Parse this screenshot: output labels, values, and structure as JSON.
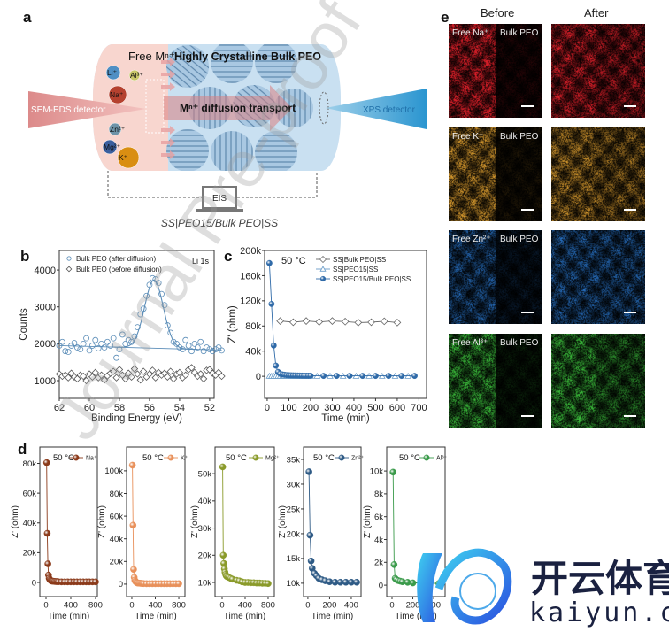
{
  "panel_labels": {
    "a": "a",
    "b": "b",
    "c": "c",
    "d": "d",
    "e": "e"
  },
  "diagram": {
    "free_ions_title": "Free Mⁿ⁺",
    "crystalline_title": "Highly Crystalline Bulk PEO",
    "transport_label": "Mⁿ⁺ diffusion transport",
    "sem_detector": "SEM-EDS detector",
    "xps_detector": "XPS detector",
    "eis_label": "EIS",
    "cell_caption": "SS|PEO15/Bulk PEO|SS",
    "ions": [
      {
        "label": "Li⁺",
        "color": "#4f8fc4"
      },
      {
        "label": "Al³⁺",
        "color": "#c9c76a"
      },
      {
        "label": "Na⁺",
        "color": "#b5412f"
      },
      {
        "label": "Zn²⁺",
        "color": "#6d93a8"
      },
      {
        "label": "Mg²⁺",
        "color": "#3a5f9e"
      },
      {
        "label": "K⁺",
        "color": "#d98e12"
      }
    ]
  },
  "eds_maps": {
    "column_headers": [
      "Before",
      "After"
    ],
    "rows": [
      {
        "free_label": "Free Na⁺",
        "bulk_label": "Bulk PEO",
        "color": "#e0202a",
        "before": [
          0.85,
          0.12
        ],
        "after": [
          0.75,
          0.6
        ]
      },
      {
        "free_label": "Free K⁺",
        "bulk_label": "Bulk PEO",
        "color": "#e0a030",
        "before": [
          0.75,
          0.1
        ],
        "after": [
          0.7,
          0.55
        ]
      },
      {
        "free_label": "Free Zn²⁺",
        "bulk_label": "Bulk PEO",
        "color": "#2a78d0",
        "before": [
          0.6,
          0.15
        ],
        "after": [
          0.65,
          0.6
        ]
      },
      {
        "free_label": "Free Al³⁺",
        "bulk_label": "Bulk PEO",
        "color": "#3cc03c",
        "before": [
          0.75,
          0.12
        ],
        "after": [
          0.75,
          0.5
        ]
      }
    ]
  },
  "watermarks": {
    "journal": "Journal Pre-proof",
    "brand_cn": "开云体育",
    "brand_url": "kaiyun.com"
  },
  "chart_data": [
    {
      "id": "b",
      "type": "scatter",
      "xlabel": "Binding Energy (eV)",
      "ylabel": "Counts",
      "xlim": [
        62,
        51.7
      ],
      "ylim": [
        520,
        4530
      ],
      "xticks": {
        "values": [
          62,
          60,
          58,
          56,
          54,
          52
        ],
        "labels": [
          "62",
          "60",
          "58",
          "56",
          "54",
          "52"
        ]
      },
      "yticks": {
        "values": [
          1000,
          2000,
          3000,
          4000
        ],
        "labels": [
          "1000",
          "2000",
          "3000",
          "4000"
        ]
      },
      "annotation": "Li 1s",
      "legend_position": "top-left",
      "series": [
        {
          "name": "Bulk PEO (after diffusion)",
          "marker": "circle-open",
          "color": "#5b8db8",
          "x": [
            62.0,
            61.8,
            61.6,
            61.4,
            61.2,
            61.0,
            60.8,
            60.6,
            60.4,
            60.2,
            60.0,
            59.8,
            59.6,
            59.4,
            59.2,
            59.0,
            58.8,
            58.6,
            58.4,
            58.2,
            58.0,
            57.8,
            57.6,
            57.4,
            57.2,
            57.0,
            56.8,
            56.6,
            56.4,
            56.2,
            56.0,
            55.8,
            55.6,
            55.4,
            55.2,
            55.0,
            54.8,
            54.6,
            54.4,
            54.2,
            54.0,
            53.8,
            53.6,
            53.4,
            53.2,
            53.0,
            52.8,
            52.6,
            52.4,
            52.2,
            52.0,
            51.8,
            51.6,
            51.4,
            51.2
          ],
          "y": [
            1950,
            2050,
            1800,
            1780,
            1950,
            2020,
            1900,
            1850,
            2000,
            2150,
            1820,
            1950,
            2100,
            1880,
            2000,
            1900,
            2050,
            1950,
            2150,
            1620,
            1850,
            2250,
            2000,
            2100,
            2050,
            2200,
            2450,
            2800,
            2950,
            3300,
            3600,
            3780,
            3750,
            3650,
            3350,
            3050,
            2500,
            2300,
            2050,
            2000,
            1900,
            1850,
            2100,
            1950,
            1800,
            2000,
            1900,
            2050,
            1800,
            1900,
            1850,
            1800,
            1850,
            1900,
            1820
          ]
        },
        {
          "name": "Bulk PEO (before diffusion)",
          "marker": "diamond-open",
          "color": "#555555",
          "x": [
            62.0,
            61.8,
            61.6,
            61.4,
            61.2,
            61.0,
            60.8,
            60.6,
            60.4,
            60.2,
            60.0,
            59.8,
            59.6,
            59.4,
            59.2,
            59.0,
            58.8,
            58.6,
            58.4,
            58.2,
            58.0,
            57.8,
            57.6,
            57.4,
            57.2,
            57.0,
            56.8,
            56.6,
            56.4,
            56.2,
            56.0,
            55.8,
            55.6,
            55.4,
            55.2,
            55.0,
            54.8,
            54.6,
            54.4,
            54.2,
            54.0,
            53.8,
            53.6,
            53.4,
            53.2,
            53.0,
            52.8,
            52.6,
            52.4,
            52.2,
            52.0,
            51.8,
            51.6,
            51.4,
            51.2
          ],
          "y": [
            1180,
            1120,
            1150,
            1080,
            1200,
            1100,
            1050,
            1150,
            1120,
            1000,
            1180,
            1100,
            1220,
            1080,
            1150,
            1020,
            1130,
            1200,
            1250,
            1080,
            1300,
            1150,
            1050,
            1200,
            1100,
            1320,
            1180,
            1020,
            1250,
            1100,
            1180,
            1280,
            1080,
            1220,
            1150,
            1200,
            1100,
            1250,
            1050,
            1180,
            1220,
            1080,
            1150,
            1300,
            1350,
            1220,
            1120,
            1180,
            1050,
            1280,
            1300,
            1200,
            1150,
            1220,
            1120
          ]
        }
      ],
      "fit": {
        "color": "#5b8db8",
        "baseline": [
          [
            62,
            1950
          ],
          [
            51.2,
            1830
          ]
        ],
        "peak_center": 55.7,
        "peak_height": 1850,
        "peak_sigma": 0.62
      }
    },
    {
      "id": "c",
      "type": "line",
      "xlabel": "Time (min)",
      "ylabel": "Z' (ohm)",
      "xlim": [
        -12,
        735
      ],
      "ylim": [
        -35000,
        200000
      ],
      "xticks": {
        "values": [
          0,
          100,
          200,
          300,
          400,
          500,
          600,
          700
        ],
        "labels": [
          "0",
          "100",
          "200",
          "300",
          "400",
          "500",
          "600",
          "700"
        ]
      },
      "yticks": {
        "values": [
          0,
          40000,
          80000,
          120000,
          160000,
          200000
        ],
        "labels": [
          "0",
          "40k",
          "80k",
          "120k",
          "160k",
          "200k"
        ]
      },
      "annotation": "50 °C",
      "legend_position": "top-right",
      "series": [
        {
          "name": "SS|Bulk PEO|SS",
          "marker": "diamond-open",
          "color": "#666666",
          "x": [
            60,
            120,
            180,
            240,
            300,
            360,
            420,
            480,
            540,
            600
          ],
          "y": [
            88000,
            86000,
            88000,
            86500,
            88000,
            87000,
            85500,
            86000,
            87500,
            85500
          ]
        },
        {
          "name": "SS|PEO15|SS",
          "marker": "triangle-open",
          "color": "#6a9cc8",
          "x": [
            10,
            20,
            30,
            40,
            50,
            60,
            70,
            80,
            90,
            100,
            110,
            120,
            130,
            140,
            150,
            160,
            170,
            180,
            190,
            200,
            230,
            290,
            350,
            410,
            470,
            530,
            590,
            650
          ],
          "y": [
            400,
            400,
            400,
            400,
            400,
            400,
            400,
            400,
            400,
            400,
            400,
            400,
            400,
            400,
            400,
            400,
            400,
            400,
            400,
            400,
            400,
            400,
            400,
            400,
            400,
            400,
            400,
            400
          ]
        },
        {
          "name": "SS|PEO15/Bulk PEO|SS",
          "marker": "ball",
          "color": "#2f6aa8",
          "x": [
            10,
            20,
            30,
            40,
            50,
            60,
            70,
            80,
            90,
            100,
            110,
            120,
            130,
            140,
            150,
            160,
            170,
            180,
            190,
            200,
            260,
            320,
            380,
            440,
            500,
            560,
            620,
            680
          ],
          "y": [
            180000,
            115000,
            49000,
            17000,
            7000,
            4000,
            3000,
            2500,
            2000,
            1800,
            1600,
            1500,
            1400,
            1300,
            1200,
            1100,
            1000,
            1000,
            1000,
            1000,
            700,
            700,
            700,
            700,
            700,
            700,
            700,
            700
          ]
        }
      ]
    },
    {
      "id": "d-na",
      "type": "line",
      "xlabel": "Time (min)",
      "ylabel": "Z' (ohm)",
      "xlim": [
        -100,
        829
      ],
      "ylim": [
        -9500,
        91000
      ],
      "xticks": {
        "values": [
          0,
          400,
          800
        ],
        "labels": [
          "0",
          "400",
          "800"
        ]
      },
      "yticks": {
        "values": [
          0,
          20000,
          40000,
          60000,
          80000
        ],
        "labels": [
          "0",
          "20k",
          "40k",
          "60k",
          "80k"
        ]
      },
      "annotation": "50 °C",
      "series": [
        {
          "name": "Na⁺",
          "marker": "ball",
          "color": "#8b3a1a",
          "x": [
            10,
            20,
            30,
            40,
            50,
            60,
            70,
            80,
            90,
            100,
            120,
            140,
            160,
            180,
            200,
            250,
            300,
            350,
            400,
            450,
            500,
            550,
            600,
            650,
            700,
            750,
            800
          ],
          "y": [
            80500,
            33000,
            12500,
            5000,
            2800,
            2000,
            1500,
            1200,
            1000,
            900,
            800,
            700,
            600,
            600,
            500,
            400,
            400,
            400,
            400,
            400,
            400,
            400,
            400,
            400,
            400,
            400,
            400
          ]
        }
      ]
    },
    {
      "id": "d-k",
      "type": "line",
      "xlabel": "Time (min)",
      "ylabel": "Z' (ohm)",
      "xlim": [
        -90,
        905
      ],
      "ylim": [
        -11000,
        121000
      ],
      "xticks": {
        "values": [
          0,
          400,
          800
        ],
        "labels": [
          "0",
          "400",
          "800"
        ]
      },
      "yticks": {
        "values": [
          0,
          20000,
          40000,
          60000,
          80000,
          100000
        ],
        "labels": [
          "0",
          "20k",
          "40k",
          "60k",
          "80k",
          "100k"
        ]
      },
      "annotation": "50 °C",
      "series": [
        {
          "name": "K⁺",
          "marker": "ball",
          "color": "#e8905a",
          "x": [
            10,
            20,
            30,
            40,
            50,
            60,
            70,
            80,
            90,
            100,
            120,
            140,
            160,
            180,
            200,
            250,
            300,
            350,
            400,
            450,
            500,
            550,
            600,
            650,
            700,
            750,
            800
          ],
          "y": [
            105000,
            52000,
            13000,
            6000,
            3500,
            2500,
            2000,
            1500,
            1200,
            1000,
            900,
            800,
            700,
            600,
            500,
            400,
            400,
            400,
            400,
            400,
            400,
            400,
            400,
            400,
            400,
            400,
            400
          ]
        }
      ]
    },
    {
      "id": "d-mg",
      "type": "line",
      "xlabel": "Time (min)",
      "ylabel": "Z' (ohm)",
      "xlim": [
        -123,
        908
      ],
      "ylim": [
        4800,
        59800
      ],
      "xticks": {
        "values": [
          0,
          400,
          800
        ],
        "labels": [
          "0",
          "400",
          "800"
        ]
      },
      "yticks": {
        "values": [
          10000,
          20000,
          30000,
          40000,
          50000
        ],
        "labels": [
          "10k",
          "20k",
          "30k",
          "40k",
          "50k"
        ]
      },
      "annotation": "50 °C",
      "series": [
        {
          "name": "Mg²⁺",
          "marker": "ball",
          "color": "#8a9a2a",
          "x": [
            10,
            20,
            30,
            40,
            50,
            60,
            70,
            80,
            100,
            120,
            150,
            180,
            250,
            300,
            350,
            400,
            450,
            500,
            550,
            600,
            650,
            700,
            750,
            800
          ],
          "y": [
            52500,
            20000,
            17000,
            15000,
            13800,
            13000,
            12500,
            12200,
            12000,
            11800,
            11500,
            11200,
            10800,
            10600,
            10200,
            10000,
            10000,
            9900,
            9900,
            9800,
            9800,
            9700,
            9700,
            9600
          ]
        }
      ]
    },
    {
      "id": "d-zn",
      "type": "line",
      "xlabel": "Time (min)",
      "ylabel": "Z' (ohm)",
      "xlim": [
        -40,
        490
      ],
      "ylim": [
        7300,
        37500
      ],
      "xticks": {
        "values": [
          0,
          200,
          400
        ],
        "labels": [
          "0",
          "200",
          "400"
        ]
      },
      "yticks": {
        "values": [
          10000,
          15000,
          20000,
          25000,
          30000,
          35000
        ],
        "labels": [
          "10k",
          "15k",
          "20k",
          "25k",
          "30k",
          "35k"
        ]
      },
      "annotation": "50 °C",
      "series": [
        {
          "name": "Zn²⁺",
          "marker": "ball",
          "color": "#2e5a85",
          "x": [
            10,
            20,
            30,
            40,
            60,
            80,
            100,
            130,
            160,
            200,
            250,
            300,
            350,
            400,
            450
          ],
          "y": [
            32500,
            19700,
            14500,
            13000,
            12000,
            11500,
            11000,
            10700,
            10500,
            10300,
            10200,
            10200,
            10200,
            10200,
            10200
          ]
        }
      ]
    },
    {
      "id": "d-al",
      "type": "line",
      "xlabel": "Time (min)",
      "ylabel": "Z' (ohm)",
      "xlim": [
        -51,
        510
      ],
      "ylim": [
        -1000,
        12100
      ],
      "xticks": {
        "values": [
          0,
          200,
          400
        ],
        "labels": [
          "0",
          "200",
          "400"
        ]
      },
      "yticks": {
        "values": [
          0,
          2000,
          4000,
          6000,
          8000,
          10000
        ],
        "labels": [
          "0",
          "2k",
          "4k",
          "6k",
          "8k",
          "10k"
        ]
      },
      "annotation": "50 °C",
      "series": [
        {
          "name": "Al³⁺",
          "marker": "ball",
          "color": "#3a9a4a",
          "x": [
            10,
            20,
            30,
            40,
            60,
            80,
            100,
            150,
            200,
            300,
            450
          ],
          "y": [
            9900,
            1800,
            600,
            500,
            400,
            350,
            300,
            250,
            200,
            200,
            150
          ]
        }
      ]
    }
  ]
}
